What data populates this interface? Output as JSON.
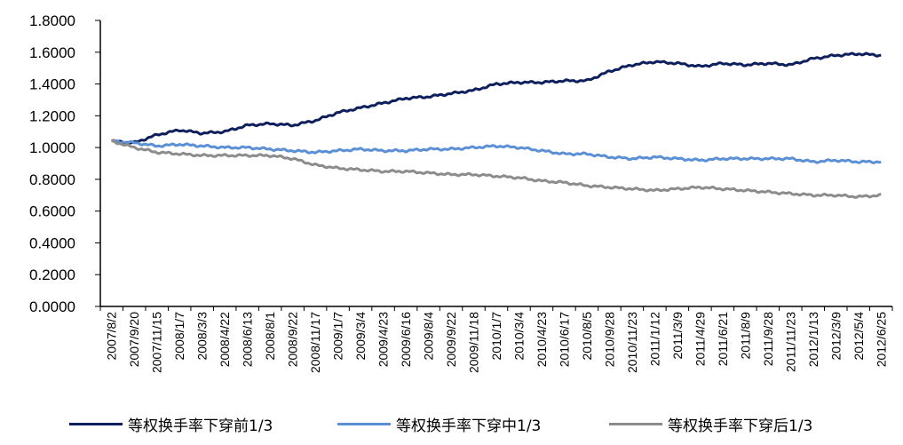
{
  "chart_data": {
    "type": "line",
    "title": "",
    "xlabel": "",
    "ylabel": "",
    "ylim": [
      0,
      1.8
    ],
    "yticks": [
      "0.0000",
      "0.2000",
      "0.4000",
      "0.6000",
      "0.8000",
      "1.0000",
      "1.2000",
      "1.4000",
      "1.6000",
      "1.8000"
    ],
    "x": [
      "2007/8/2",
      "2007/9/20",
      "2007/11/15",
      "2008/1/7",
      "2008/3/3",
      "2008/4/22",
      "2008/6/13",
      "2008/8/1",
      "2008/9/22",
      "2008/11/17",
      "2009/1/7",
      "2009/3/4",
      "2009/4/23",
      "2009/6/16",
      "2009/8/4",
      "2009/9/22",
      "2009/11/18",
      "2010/1/7",
      "2010/3/4",
      "2010/4/23",
      "2010/6/17",
      "2010/8/5",
      "2010/9/28",
      "2010/11/23",
      "2011/1/12",
      "2011/3/9",
      "2011/4/29",
      "2011/6/21",
      "2011/8/9",
      "2011/9/28",
      "2011/11/23",
      "2012/1/13",
      "2012/3/9",
      "2012/5/4",
      "2012/6/25"
    ],
    "grid": false,
    "legend_position": "bottom",
    "series": [
      {
        "name": "等权换手率下穿前1/3",
        "color": "#0d1f5c",
        "values": [
          1.04,
          1.03,
          1.08,
          1.11,
          1.09,
          1.1,
          1.14,
          1.15,
          1.14,
          1.17,
          1.22,
          1.25,
          1.28,
          1.31,
          1.32,
          1.34,
          1.36,
          1.4,
          1.41,
          1.41,
          1.42,
          1.42,
          1.48,
          1.52,
          1.54,
          1.53,
          1.51,
          1.53,
          1.52,
          1.53,
          1.52,
          1.56,
          1.58,
          1.59,
          1.58
        ]
      },
      {
        "name": "等权换手率下穿中1/3",
        "color": "#5b8fd6",
        "values": [
          1.04,
          1.03,
          1.01,
          1.02,
          1.01,
          1.0,
          1.0,
          0.99,
          0.98,
          0.97,
          0.98,
          0.99,
          0.98,
          0.98,
          0.99,
          0.99,
          1.0,
          1.01,
          1.0,
          0.98,
          0.96,
          0.96,
          0.94,
          0.93,
          0.94,
          0.93,
          0.92,
          0.93,
          0.93,
          0.93,
          0.93,
          0.91,
          0.92,
          0.91,
          0.91
        ]
      },
      {
        "name": "等权换手率下穿后1/3",
        "color": "#8c8c8c",
        "values": [
          1.04,
          1.0,
          0.97,
          0.96,
          0.95,
          0.95,
          0.95,
          0.95,
          0.93,
          0.89,
          0.87,
          0.86,
          0.85,
          0.85,
          0.84,
          0.83,
          0.83,
          0.82,
          0.81,
          0.79,
          0.78,
          0.76,
          0.75,
          0.74,
          0.73,
          0.74,
          0.75,
          0.74,
          0.73,
          0.72,
          0.71,
          0.7,
          0.7,
          0.69,
          0.7
        ]
      }
    ]
  }
}
